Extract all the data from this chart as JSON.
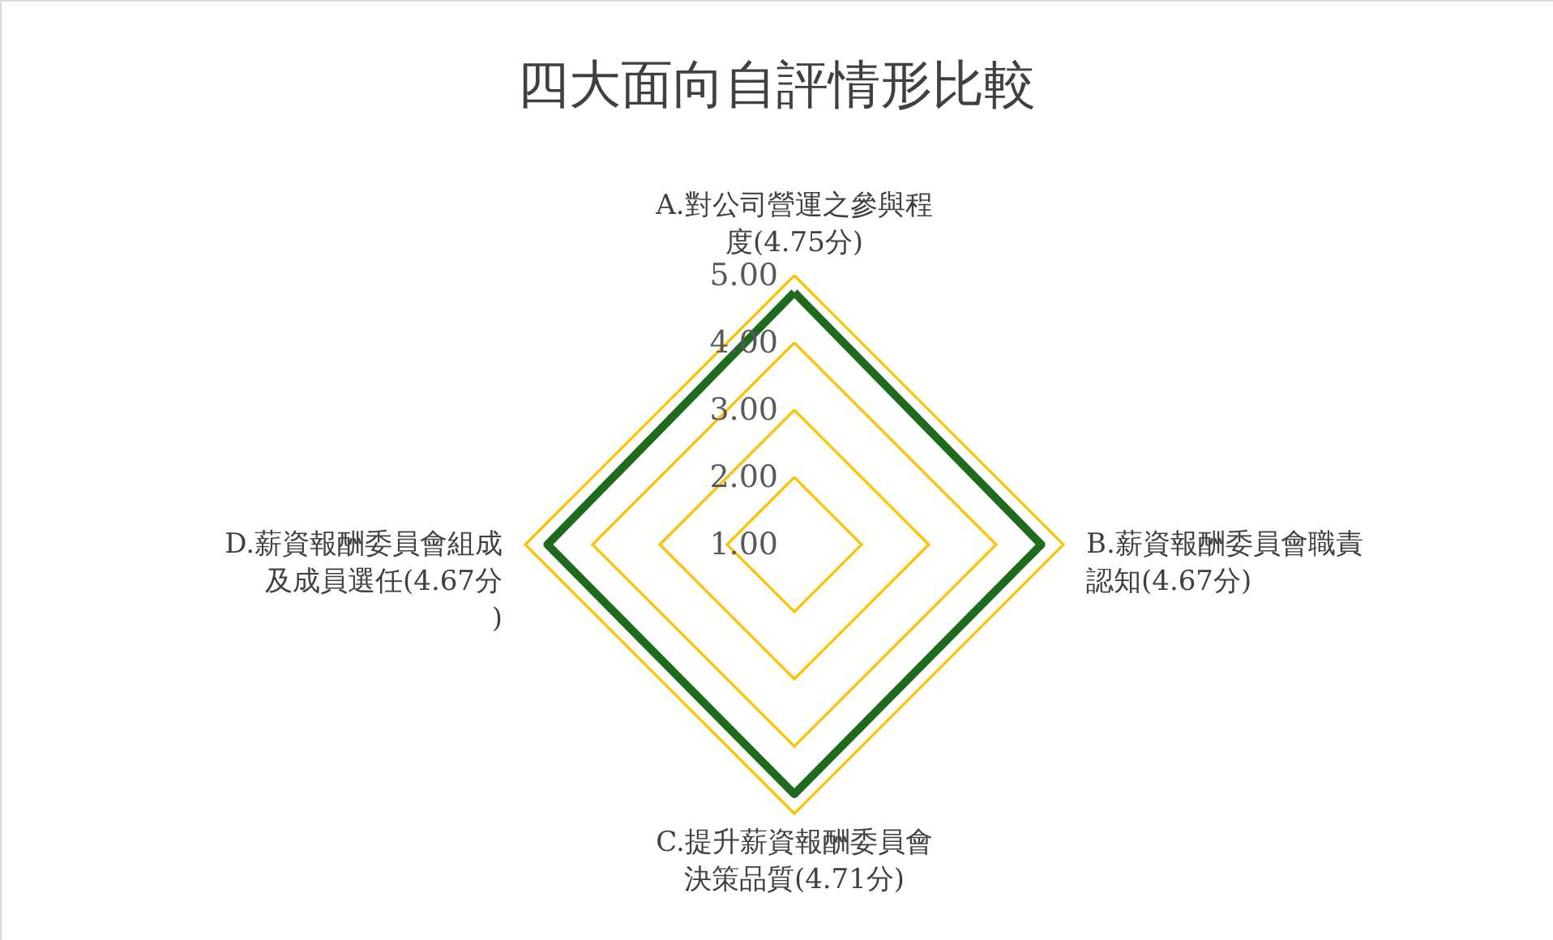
{
  "chart_data": {
    "type": "radar",
    "title": "四大面向自評情形比較",
    "categories": [
      "A.對公司營運之參與程度(4.75分)",
      "B.薪資報酬委員會職責認知(4.67分)",
      "C.提升薪資報酬委員會決策品質(4.71分)",
      "D.薪資報酬委員會組成及成員選任(4.67分)"
    ],
    "series": [
      {
        "color": "#1e6b1e",
        "values": [
          4.75,
          4.67,
          4.71,
          4.67
        ]
      }
    ],
    "ylim": [
      1,
      5
    ],
    "yticks": [
      {
        "value": 1,
        "label": "1.00"
      },
      {
        "value": 2,
        "label": "2.00"
      },
      {
        "value": 3,
        "label": "3.00"
      },
      {
        "value": 4,
        "label": "4.00"
      },
      {
        "value": 5,
        "label": "5.00"
      }
    ],
    "grid": true
  }
}
